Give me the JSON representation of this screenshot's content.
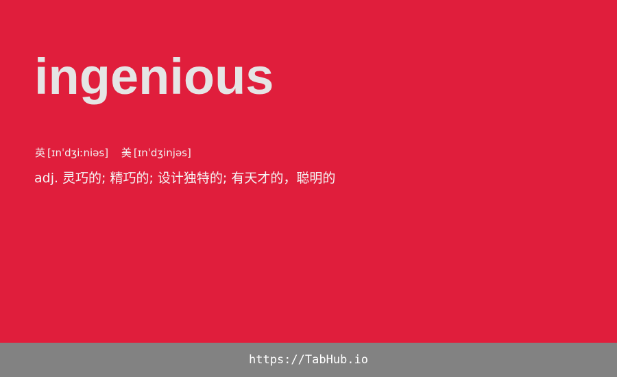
{
  "entry": {
    "word": "ingenious",
    "phonetics": [
      {
        "label": "英",
        "ipa": "[ɪnˈdʒiːniəs]"
      },
      {
        "label": "美",
        "ipa": "[ɪnˈdʒinjəs]"
      }
    ],
    "definition": {
      "pos": "adj.",
      "meaning": "灵巧的; 精巧的; 设计独特的; 有天才的，聪明的"
    }
  },
  "footer": {
    "link": "https://TabHub.io"
  },
  "colors": {
    "background": "#e01e3c",
    "footer_background": "#828282",
    "word_text": "#e5e5e5"
  }
}
